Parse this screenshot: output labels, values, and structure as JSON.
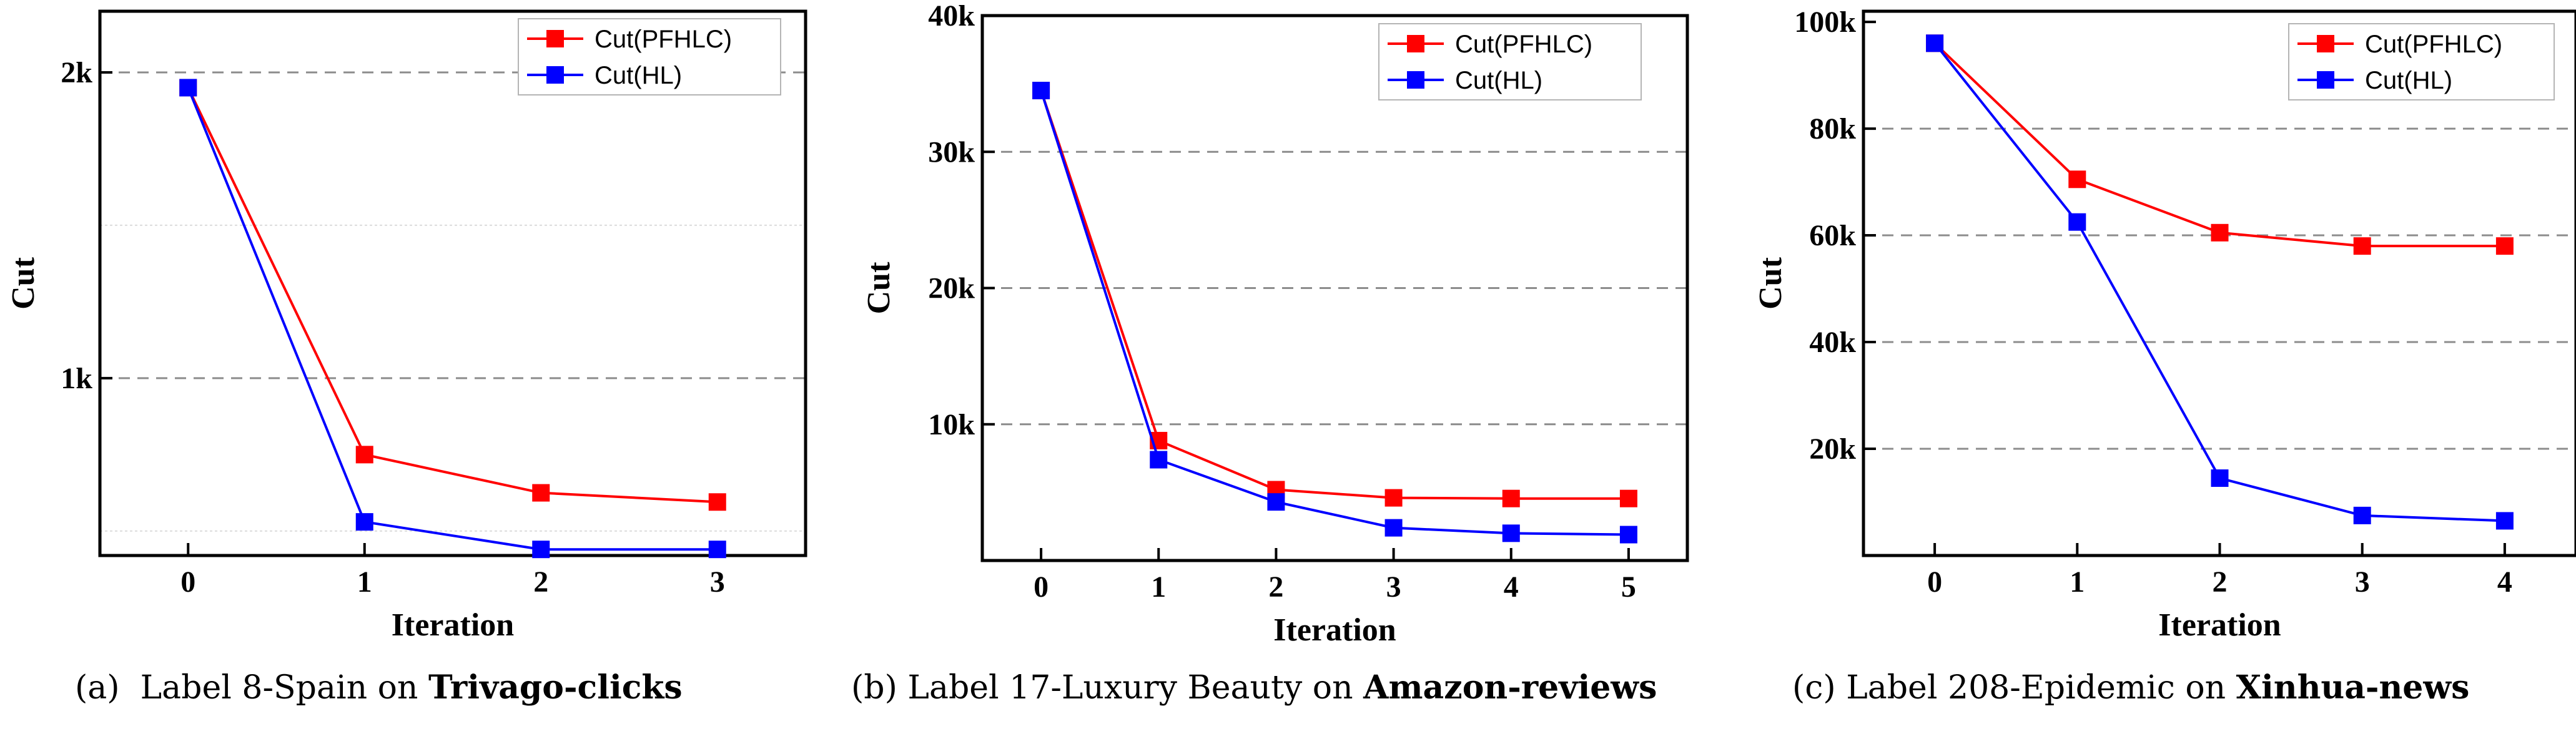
{
  "colors": {
    "pfhlc": "#ff0000",
    "hl": "#0000ff"
  },
  "chart_data": [
    {
      "type": "line",
      "caption": {
        "prefix": "(a)",
        "text": "Label 8-Spain on",
        "bold": "Trivago-clicks"
      },
      "xlabel": "Iteration",
      "ylabel": "Cut",
      "x": [
        0,
        1,
        2,
        3
      ],
      "xlim": [
        -0.5,
        3.5
      ],
      "ylim": [
        420,
        2200
      ],
      "yticks": [
        {
          "value": 1000,
          "label": "1k",
          "gridline": true
        },
        {
          "value": 2000,
          "label": "2k",
          "gridline": true
        }
      ],
      "minor_gridlines": [
        1500,
        500
      ],
      "series": [
        {
          "name": "Cut(PFHLC)",
          "color": "#ff0000",
          "values": [
            1950,
            750,
            625,
            595
          ]
        },
        {
          "name": "Cut(HL)",
          "color": "#0000ff",
          "values": [
            1950,
            530,
            440,
            440
          ]
        }
      ],
      "legend": "top-right",
      "grid": true
    },
    {
      "type": "line",
      "caption": {
        "prefix": "(b)",
        "text": "Label 17-Luxury Beauty on",
        "bold": "Amazon-reviews"
      },
      "xlabel": "Iteration",
      "ylabel": "Cut",
      "x": [
        0,
        1,
        2,
        3,
        4,
        5
      ],
      "xlim": [
        -0.5,
        5.5
      ],
      "ylim": [
        0,
        40000
      ],
      "yticks": [
        {
          "value": 10000,
          "label": "10k",
          "gridline": true
        },
        {
          "value": 20000,
          "label": "20k",
          "gridline": true
        },
        {
          "value": 30000,
          "label": "30k",
          "gridline": true
        },
        {
          "value": 40000,
          "label": "40k",
          "gridline": false
        }
      ],
      "minor_gridlines": [],
      "series": [
        {
          "name": "Cut(PFHLC)",
          "color": "#ff0000",
          "values": [
            34500,
            8800,
            5200,
            4600,
            4550,
            4550
          ]
        },
        {
          "name": "Cut(HL)",
          "color": "#0000ff",
          "values": [
            34500,
            7400,
            4300,
            2400,
            2000,
            1900
          ]
        }
      ],
      "legend": "top-right",
      "grid": true
    },
    {
      "type": "line",
      "caption": {
        "prefix": "(c)",
        "text": "Label 208-Epidemic on",
        "bold": "Xinhua-news"
      },
      "xlabel": "Iteration",
      "ylabel": "Cut",
      "x": [
        0,
        1,
        2,
        3,
        4
      ],
      "xlim": [
        -0.5,
        4.5
      ],
      "ylim": [
        0,
        102000
      ],
      "yticks": [
        {
          "value": 20000,
          "label": "20k",
          "gridline": true
        },
        {
          "value": 40000,
          "label": "40k",
          "gridline": true
        },
        {
          "value": 60000,
          "label": "60k",
          "gridline": true
        },
        {
          "value": 80000,
          "label": "80k",
          "gridline": true
        },
        {
          "value": 100000,
          "label": "100k",
          "gridline": false
        }
      ],
      "minor_gridlines": [],
      "series": [
        {
          "name": "Cut(PFHLC)",
          "color": "#ff0000",
          "values": [
            96000,
            70500,
            60500,
            58000,
            58000
          ]
        },
        {
          "name": "Cut(HL)",
          "color": "#0000ff",
          "values": [
            96000,
            62500,
            14500,
            7500,
            6500
          ]
        }
      ],
      "legend": "top-right",
      "grid": true
    }
  ]
}
